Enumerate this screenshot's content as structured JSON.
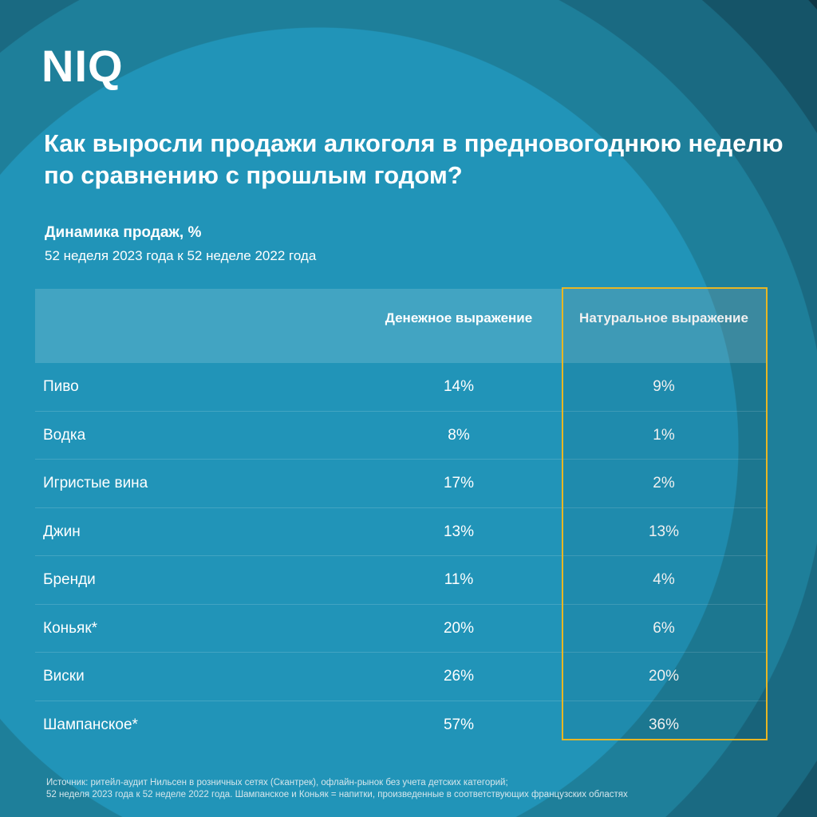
{
  "logo": "NIQ",
  "title": "Как выросли продажи алкоголя в предновогоднюю неделю по сравнению с прошлым годом?",
  "subtitle": "Динамика продаж, %",
  "period": "52 неделя 2023 года к 52 неделе 2022 года",
  "colors": {
    "highlight": "#e8b623",
    "background": "#2194b8"
  },
  "chart_data": {
    "type": "table",
    "columns": [
      "Денежное выражение",
      "Натуральное выражение"
    ],
    "rows": [
      {
        "category": "Пиво",
        "money": "14%",
        "volume": "9%"
      },
      {
        "category": "Водка",
        "money": "8%",
        "volume": "1%"
      },
      {
        "category": "Игристые вина",
        "money": "17%",
        "volume": "2%"
      },
      {
        "category": "Джин",
        "money": "13%",
        "volume": "13%"
      },
      {
        "category": "Бренди",
        "money": "11%",
        "volume": "4%"
      },
      {
        "category": "Коньяк*",
        "money": "20%",
        "volume": "6%"
      },
      {
        "category": "Виски",
        "money": "26%",
        "volume": "20%"
      },
      {
        "category": "Шампанское*",
        "money": "57%",
        "volume": "36%"
      }
    ],
    "highlighted_column": "Натуральное выражение"
  },
  "footnote": [
    "Источник: ритейл-аудит Нильсен в розничных сетях (Скантрек), офлайн-рынок без учета детских категорий;",
    "52 неделя 2023 года к 52 неделе 2022 года. Шампанское и Коньяк = напитки, произведенные в соответствующих французских областях"
  ]
}
